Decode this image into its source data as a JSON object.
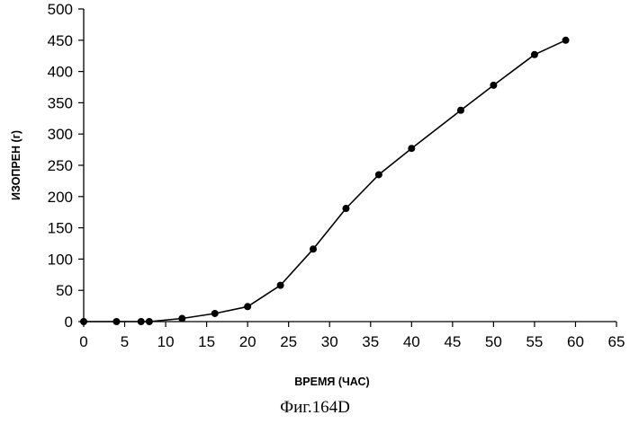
{
  "chart_data": {
    "type": "line",
    "title": "",
    "xlabel": "ВРЕМЯ (ЧАС)",
    "ylabel": "ИЗОПРЕН (г)",
    "xlim": [
      0,
      65
    ],
    "ylim": [
      0,
      500
    ],
    "xticks": [
      0,
      5,
      10,
      15,
      20,
      25,
      30,
      35,
      40,
      45,
      50,
      55,
      60,
      65
    ],
    "yticks": [
      0,
      50,
      100,
      150,
      200,
      250,
      300,
      350,
      400,
      450,
      500
    ],
    "grid": false,
    "legend": "none",
    "series": [
      {
        "x": [
          0,
          4,
          7,
          8,
          12,
          16,
          20,
          24,
          28,
          32,
          36,
          40,
          46,
          50,
          55,
          58.8
        ],
        "y": [
          0,
          0,
          0,
          0,
          5,
          13,
          24,
          58,
          116,
          181,
          235,
          277,
          338,
          378,
          427,
          450
        ],
        "color": "#000000",
        "marker": "circle"
      }
    ]
  },
  "figure_caption": "Фиг.164D"
}
